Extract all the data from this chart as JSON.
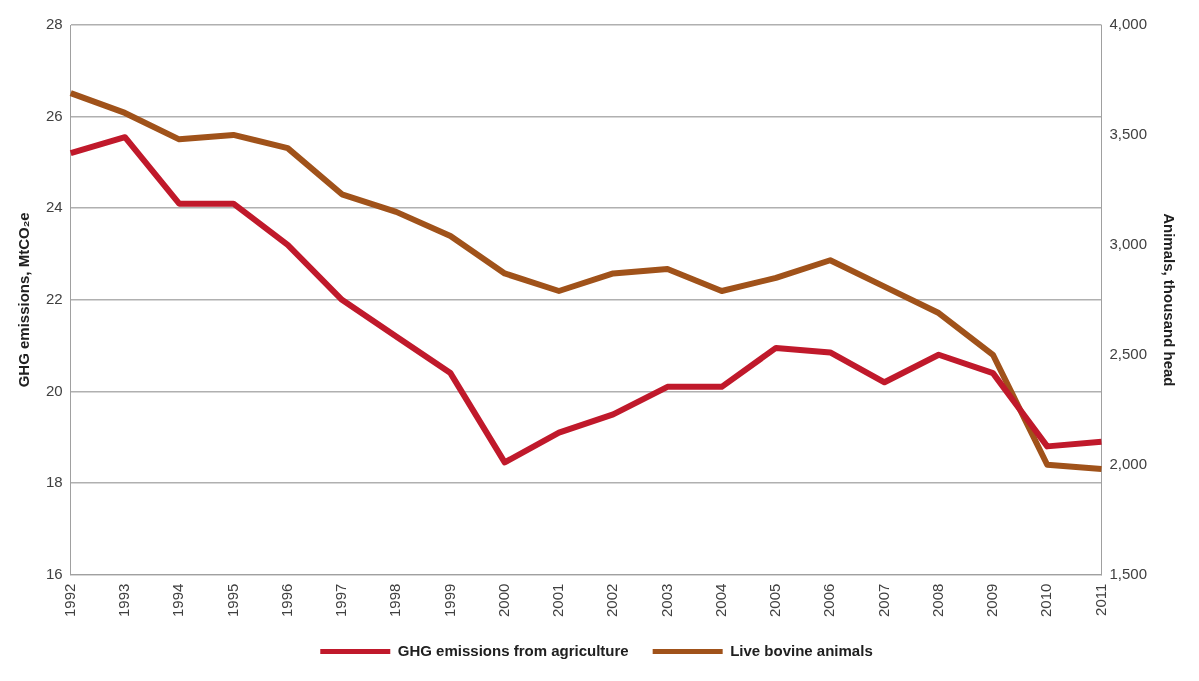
{
  "chart_data": {
    "type": "line",
    "ylabel": "GHG emissions, MtCO₂e",
    "y2label": "Animals, thousand head",
    "categories": [
      "1992",
      "1993",
      "1994",
      "1995",
      "1996",
      "1997",
      "1998",
      "1999",
      "2000",
      "2001",
      "2002",
      "2003",
      "2004",
      "2005",
      "2006",
      "2007",
      "2008",
      "2009",
      "2010",
      "2011"
    ],
    "series": [
      {
        "name": "GHG emissions from agriculture",
        "color": "#c0192b",
        "values": [
          25.2,
          25.55,
          24.1,
          24.1,
          23.2,
          22.0,
          21.2,
          20.4,
          18.45,
          19.1,
          19.5,
          20.1,
          20.1,
          20.95,
          20.85,
          20.2,
          20.8,
          20.4,
          18.8,
          18.9
        ]
      },
      {
        "name": "Live bovine animals",
        "color": "#a0521a",
        "axis": "y2",
        "values": [
          3690,
          3600,
          3480,
          3500,
          3440,
          3230,
          3150,
          3040,
          2870,
          2790,
          2870,
          2890,
          2790,
          2850,
          2930,
          2810,
          2690,
          2500,
          2000,
          1980
        ]
      }
    ],
    "ylim": [
      16,
      28
    ],
    "yticks": [
      16,
      18,
      20,
      22,
      24,
      26,
      28
    ],
    "y2lim": [
      1500,
      4000
    ],
    "y2ticks": [
      {
        "value": 1500,
        "label": "1,500"
      },
      {
        "value": 2000,
        "label": "2,000"
      },
      {
        "value": 2500,
        "label": "2,500"
      },
      {
        "value": 3000,
        "label": "3,000"
      },
      {
        "value": 3500,
        "label": "3,500"
      },
      {
        "value": 4000,
        "label": "4,000"
      }
    ],
    "grid": "y",
    "legend": "bottom",
    "marker": "none",
    "line_style": "solid"
  }
}
